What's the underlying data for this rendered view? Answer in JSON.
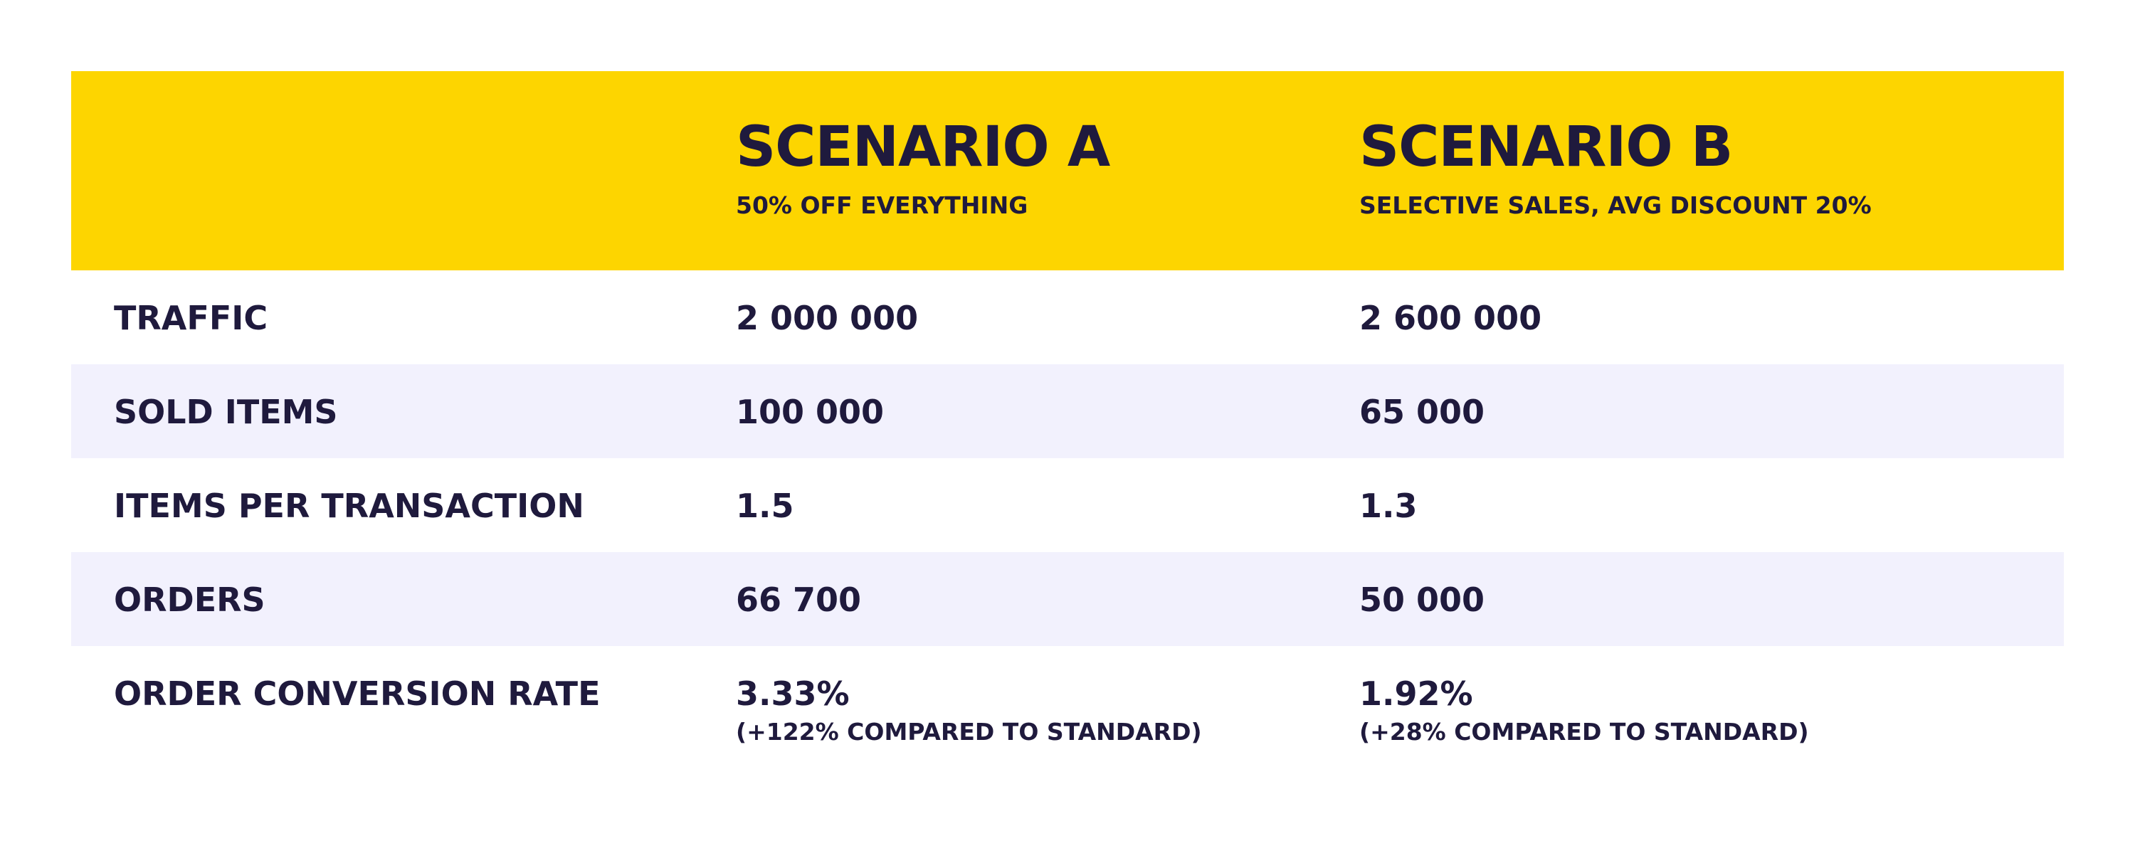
{
  "header": {
    "scenario_a": {
      "title": "SCENARIO A",
      "subtitle": "50% OFF EVERYTHING"
    },
    "scenario_b": {
      "title": "SCENARIO B",
      "subtitle": "SELECTIVE SALES, AVG DISCOUNT 20%"
    }
  },
  "rows": [
    {
      "label": "TRAFFIC",
      "a": "2 000 000",
      "b": "2 600 000"
    },
    {
      "label": "SOLD ITEMS",
      "a": "100 000",
      "b": "65 000"
    },
    {
      "label": "ITEMS PER TRANSACTION",
      "a": "1.5",
      "b": "1.3"
    },
    {
      "label": "ORDERS",
      "a": "66 700",
      "b": "50 000"
    },
    {
      "label": "ORDER CONVERSION RATE",
      "a": "3.33%",
      "a_note": "(+122% COMPARED TO STANDARD)",
      "b": "1.92%",
      "b_note": "(+28% COMPARED TO STANDARD)"
    }
  ],
  "colors": {
    "header_bg": "#fdd500",
    "alt_row_bg": "#f2f1fd",
    "text": "#1f1a3d"
  }
}
